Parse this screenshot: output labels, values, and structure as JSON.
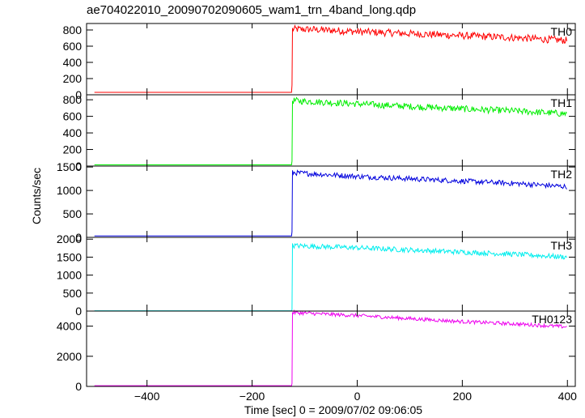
{
  "chart_data": {
    "type": "line",
    "title": "ae704022010_20090702090605_wam1_trn_4band_long.qdp",
    "xlabel": "Time [sec] 0 = 2009/07/02 09:06:05",
    "ylabel": "Counts/sec",
    "xlim": [
      -515,
      415
    ],
    "x_ticks": [
      -400,
      -200,
      0,
      200,
      400
    ],
    "x_tick_labels": [
      "−400",
      "−200",
      "0",
      "200",
      "400"
    ],
    "trigger_time": -124,
    "panels": [
      {
        "name": "TH0",
        "color": "#ff0000",
        "ylim": [
          0,
          880
        ],
        "y_ticks": [
          0,
          200,
          400,
          600,
          800
        ],
        "y_tick_labels": [
          "0",
          "200",
          "400",
          "600",
          "800"
        ],
        "pre_level": 30,
        "start_x": -500,
        "end_x": 400,
        "points": [
          [
            -124,
            810
          ],
          [
            -80,
            805
          ],
          [
            0,
            780
          ],
          [
            100,
            755
          ],
          [
            200,
            730
          ],
          [
            300,
            705
          ],
          [
            400,
            670
          ]
        ],
        "noise": 45
      },
      {
        "name": "TH1",
        "color": "#00ee00",
        "ylim": [
          0,
          860
        ],
        "y_ticks": [
          0,
          200,
          400,
          600,
          800
        ],
        "y_tick_labels": [
          "0",
          "200",
          "400",
          "600",
          "800"
        ],
        "pre_level": 15,
        "start_x": -500,
        "end_x": 400,
        "points": [
          [
            -124,
            790
          ],
          [
            0,
            750
          ],
          [
            100,
            720
          ],
          [
            200,
            690
          ],
          [
            300,
            665
          ],
          [
            400,
            630
          ]
        ],
        "noise": 40
      },
      {
        "name": "TH2",
        "color": "#0000dd",
        "ylim": [
          0,
          1520
        ],
        "y_ticks": [
          0,
          500,
          1000,
          1500
        ],
        "y_tick_labels": [
          "0",
          "500",
          "1000",
          "1500"
        ],
        "pre_level": 30,
        "start_x": -500,
        "end_x": 400,
        "points": [
          [
            -124,
            1380
          ],
          [
            0,
            1300
          ],
          [
            100,
            1250
          ],
          [
            200,
            1200
          ],
          [
            300,
            1150
          ],
          [
            400,
            1080
          ]
        ],
        "noise": 55
      },
      {
        "name": "TH3",
        "color": "#00eeee",
        "ylim": [
          0,
          2050
        ],
        "y_ticks": [
          0,
          500,
          1000,
          1500,
          2000
        ],
        "y_tick_labels": [
          "0",
          "500",
          "1000",
          "1500",
          "2000"
        ],
        "pre_level": 10,
        "start_x": -500,
        "end_x": 400,
        "points": [
          [
            -124,
            1820
          ],
          [
            0,
            1760
          ],
          [
            100,
            1700
          ],
          [
            200,
            1640
          ],
          [
            300,
            1580
          ],
          [
            400,
            1500
          ]
        ],
        "noise": 70
      },
      {
        "name": "TH0123",
        "color": "#ee00ee",
        "ylim": [
          0,
          5000
        ],
        "y_ticks": [
          0,
          2000,
          4000
        ],
        "y_tick_labels": [
          "0",
          "2000",
          "4000"
        ],
        "pre_level": 50,
        "start_x": -500,
        "end_x": 400,
        "points": [
          [
            -124,
            4900
          ],
          [
            0,
            4700
          ],
          [
            100,
            4500
          ],
          [
            200,
            4300
          ],
          [
            300,
            4150
          ],
          [
            400,
            3950
          ]
        ],
        "noise": 120
      }
    ],
    "grid": false,
    "legend": "none"
  }
}
